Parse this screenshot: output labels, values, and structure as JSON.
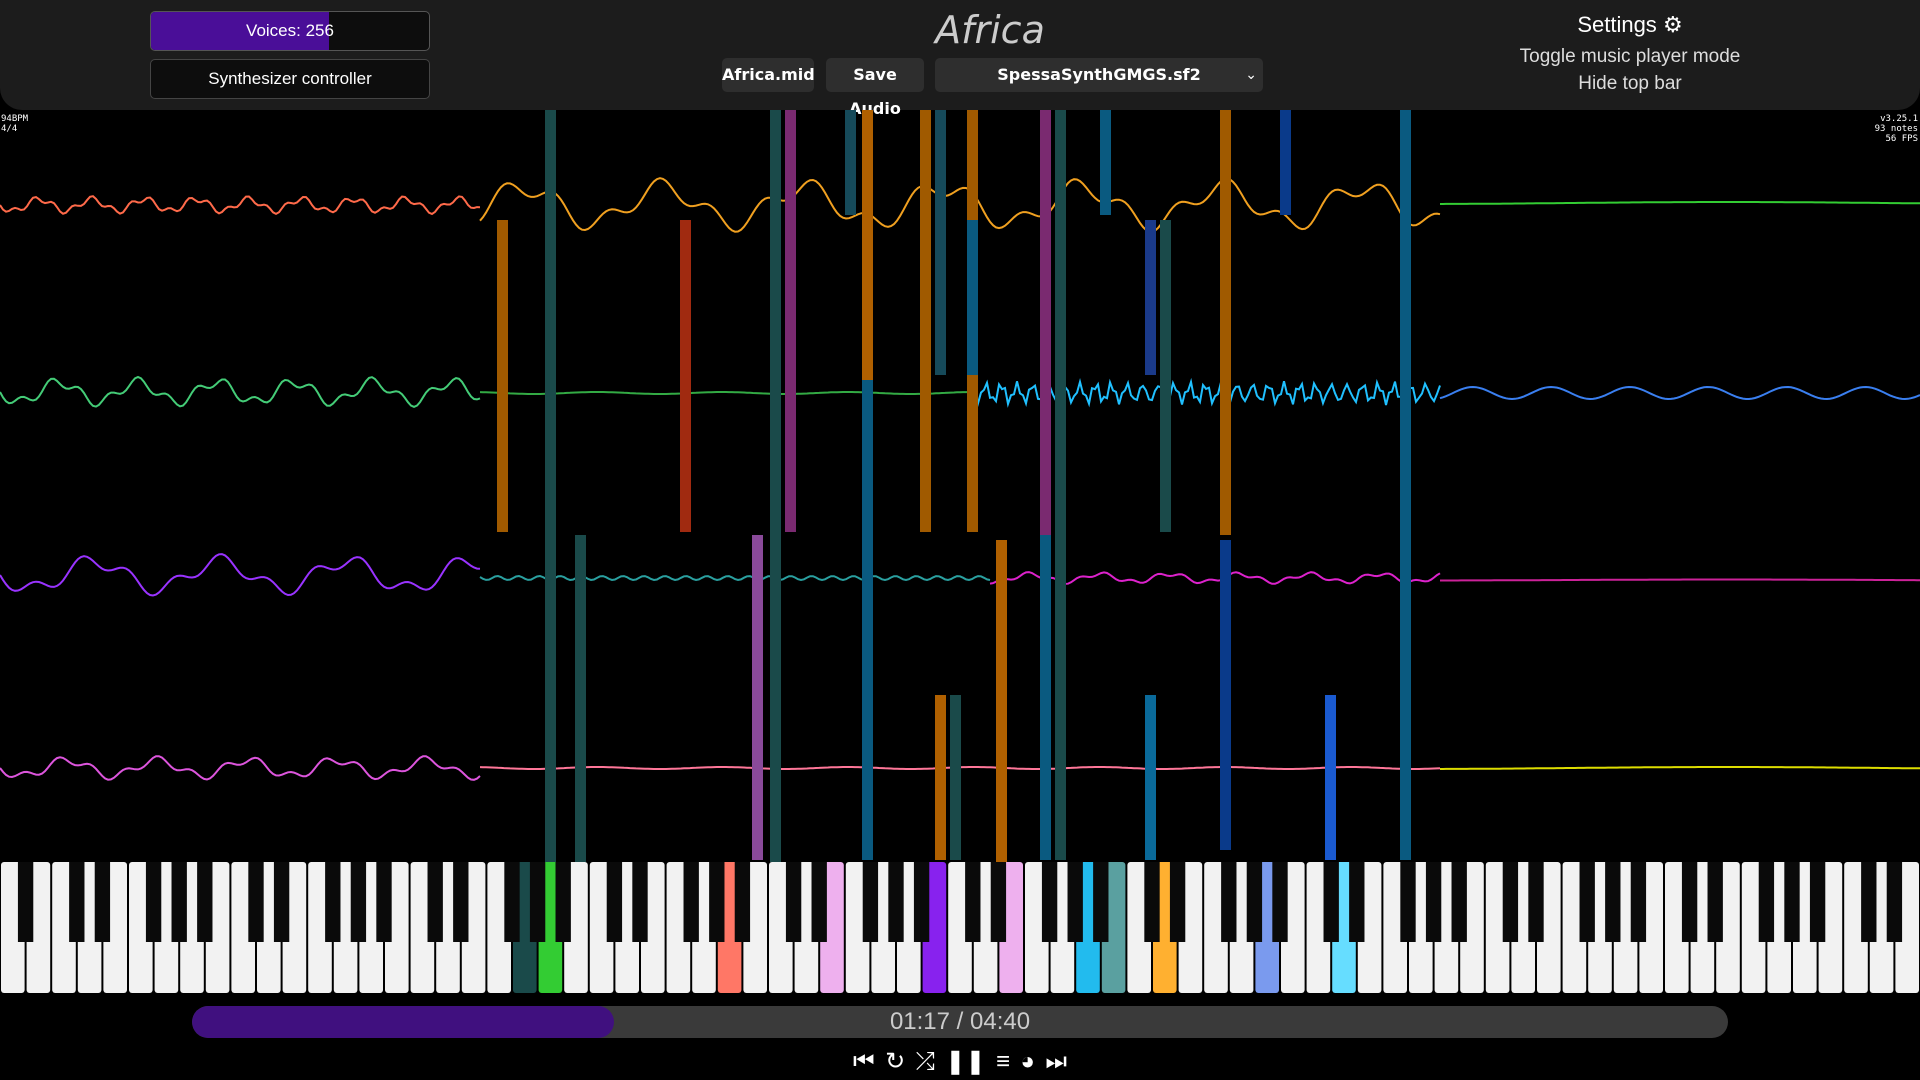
{
  "topbar": {
    "voices_label": "Voices: 256",
    "voices_fill": 0.64,
    "synth_controller": "Synthesizer controller",
    "song_title": "Africa",
    "midi_button": "Africa.mid",
    "save_audio_button": "Save Audio",
    "soundfont_selected": "SpessaSynthGMGS.sf2",
    "settings_label": "Settings",
    "toggle_player_mode": "Toggle music player mode",
    "hide_top_bar": "Hide top bar"
  },
  "overlay": {
    "bpm": "94BPM",
    "time_signature": "4/4",
    "version": "v3.25.1",
    "notes": "93 notes",
    "fps": "56 FPS"
  },
  "playback": {
    "time": "01:17 / 04:40",
    "progress": 0.275
  },
  "controls": {
    "previous": "previous-icon",
    "loop": "loop-icon",
    "shuffle": "shuffle-icon",
    "pause": "pause-icon",
    "lyrics": "lyrics-icon",
    "speed": "speedometer-icon",
    "next": "next-icon"
  },
  "colors": {
    "accent": "#4a0e98",
    "progress_fill": "#40107f",
    "topbar_bg": "#1c1c1c"
  }
}
